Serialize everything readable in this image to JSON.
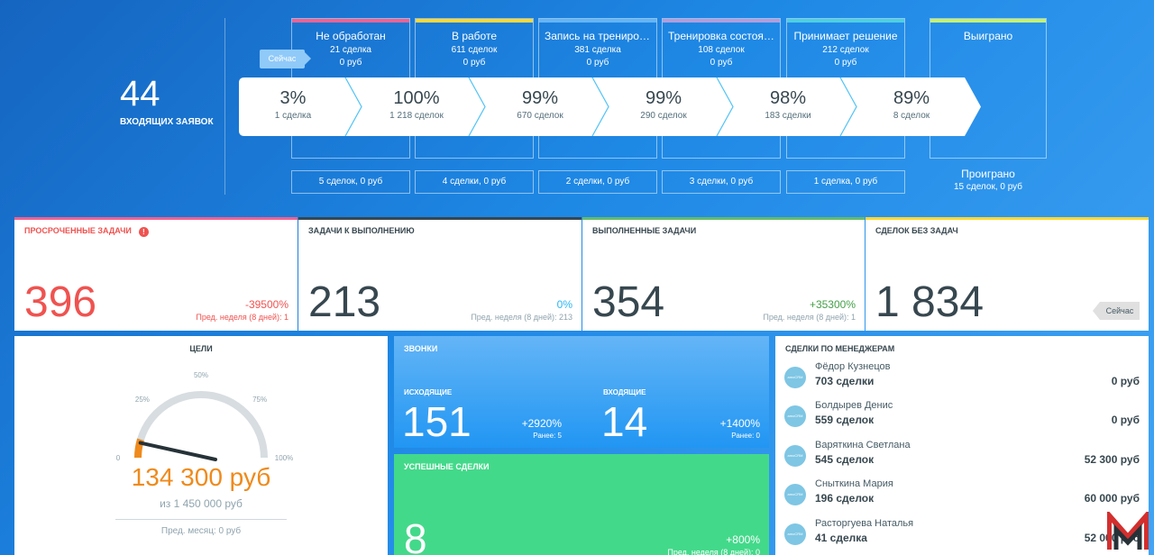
{
  "incoming": {
    "count": "44",
    "label": "ВХОДЯЩИХ ЗАЯВОК"
  },
  "now_label": "Сейчас",
  "stages": [
    {
      "name": "Не обработан",
      "deals": "21 сделка",
      "sum": "0 руб",
      "color": "#f06292",
      "pct": "3%",
      "pct_deals": "1 сделка",
      "bottom": "5 сделок, 0 руб"
    },
    {
      "name": "В работе",
      "deals": "611 сделок",
      "sum": "0 руб",
      "color": "#fdd835",
      "pct": "100%",
      "pct_deals": "1 218 сделок",
      "bottom": "4 сделки, 0 руб"
    },
    {
      "name": "Запись на тренировку",
      "deals": "381 сделка",
      "sum": "0 руб",
      "color": "#64b5f6",
      "pct": "99%",
      "pct_deals": "670 сделок",
      "bottom": "2 сделки, 0 руб"
    },
    {
      "name": "Тренировка состоялась",
      "deals": "108 сделок",
      "sum": "0 руб",
      "color": "#b39ddb",
      "pct": "99%",
      "pct_deals": "290 сделок",
      "bottom": "3 сделки, 0 руб"
    },
    {
      "name": "Принимает решение",
      "deals": "212 сделок",
      "sum": "0 руб",
      "color": "#4dd0e1",
      "pct": "98%",
      "pct_deals": "183 сделки",
      "bottom": "1 сделка, 0 руб"
    }
  ],
  "won": {
    "name": "Выиграно",
    "pct": "89%",
    "pct_deals": "8 сделок",
    "color": "#c6f26e"
  },
  "lost": {
    "name": "Проиграно",
    "sub": "15 сделок, 0 руб"
  },
  "kpis": [
    {
      "title": "ПРОСРОЧЕННЫЕ ЗАДАЧИ",
      "value": "396",
      "delta": "-39500%",
      "prev": "Пред. неделя (8 дней): 1",
      "color": "#ef5350",
      "value_color": "#ef5350",
      "delta_color": "#ef5350",
      "prev_color": "#ef5350",
      "alert": "!"
    },
    {
      "title": "ЗАДАЧИ К ВЫПОЛНЕНИЮ",
      "value": "213",
      "delta": "0%",
      "prev": "Пред. неделя (8 дней): 213",
      "color": "#37474f",
      "value_color": "#37474f",
      "delta_color": "#29b6f6",
      "prev_color": "#90a4ae"
    },
    {
      "title": "ВЫПОЛНЕННЫЕ ЗАДАЧИ",
      "value": "354",
      "delta": "+35300%",
      "prev": "Пред. неделя (8 дней): 1",
      "color": "#66bb6a",
      "value_color": "#37474f",
      "delta_color": "#43a047",
      "prev_color": "#90a4ae"
    },
    {
      "title": "СДЕЛОК БЕЗ ЗАДАЧ",
      "value": "1 834",
      "now": "Сейчас",
      "color": "#fdd835",
      "value_color": "#37474f"
    }
  ],
  "goals": {
    "title": "ЦЕЛИ",
    "amount": "134 300 руб",
    "of": "из 1 450 000 руб",
    "prev": "Пред. месяц: 0 руб",
    "gauge_fraction": 0.093,
    "ticks": [
      "0",
      "25%",
      "50%",
      "75%",
      "100%"
    ]
  },
  "calls": {
    "title": "ЗВОНКИ",
    "outgoing": {
      "label": "ИСХОДЯЩИЕ",
      "value": "151",
      "delta": "+2920%",
      "earlier": "Ранее: 5"
    },
    "incoming": {
      "label": "ВХОДЯЩИЕ",
      "value": "14",
      "delta": "+1400%",
      "earlier": "Ранее: 0"
    }
  },
  "deals": {
    "title": "УСПЕШНЫЕ СДЕЛКИ",
    "value": "8",
    "delta": "+800%",
    "prev": "Пред. неделя (8 дней): 0"
  },
  "managers": {
    "title": "СДЕЛКИ ПО МЕНЕДЖЕРАМ",
    "avatar_text": "amoCRM",
    "items": [
      {
        "name": "Фёдор Кузнецов",
        "deals": "703 сделки",
        "sum": "0 руб"
      },
      {
        "name": "Болдырев Денис",
        "deals": "559 сделок",
        "sum": "0 руб"
      },
      {
        "name": "Варяткина Светлана",
        "deals": "545 сделок",
        "sum": "52 300 руб"
      },
      {
        "name": "Сныткина Мария",
        "deals": "196 сделок",
        "sum": "60 000 руб"
      },
      {
        "name": "Расторгуева Наталья",
        "deals": "41 сделка",
        "sum": "52 000 руб"
      }
    ]
  }
}
